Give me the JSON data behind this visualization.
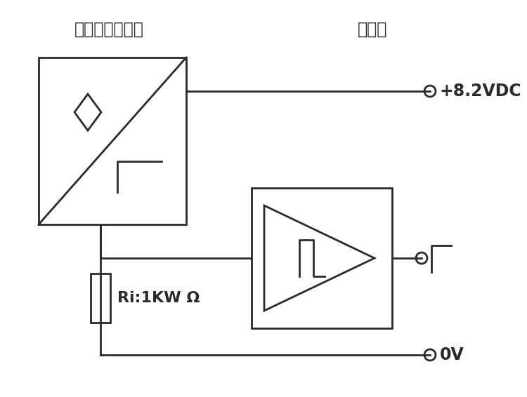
{
  "title_left": "本安防爆传感器",
  "title_right": "放大器",
  "label_vdc": "+8.2VDC",
  "label_0v": "0V",
  "label_ri": "Ri:1KW Ω",
  "bg_color": "#ffffff",
  "line_color": "#2a2a2a",
  "line_width": 2.0,
  "font_size_title": 17,
  "font_size_label": 15,
  "font_size_ri": 14
}
